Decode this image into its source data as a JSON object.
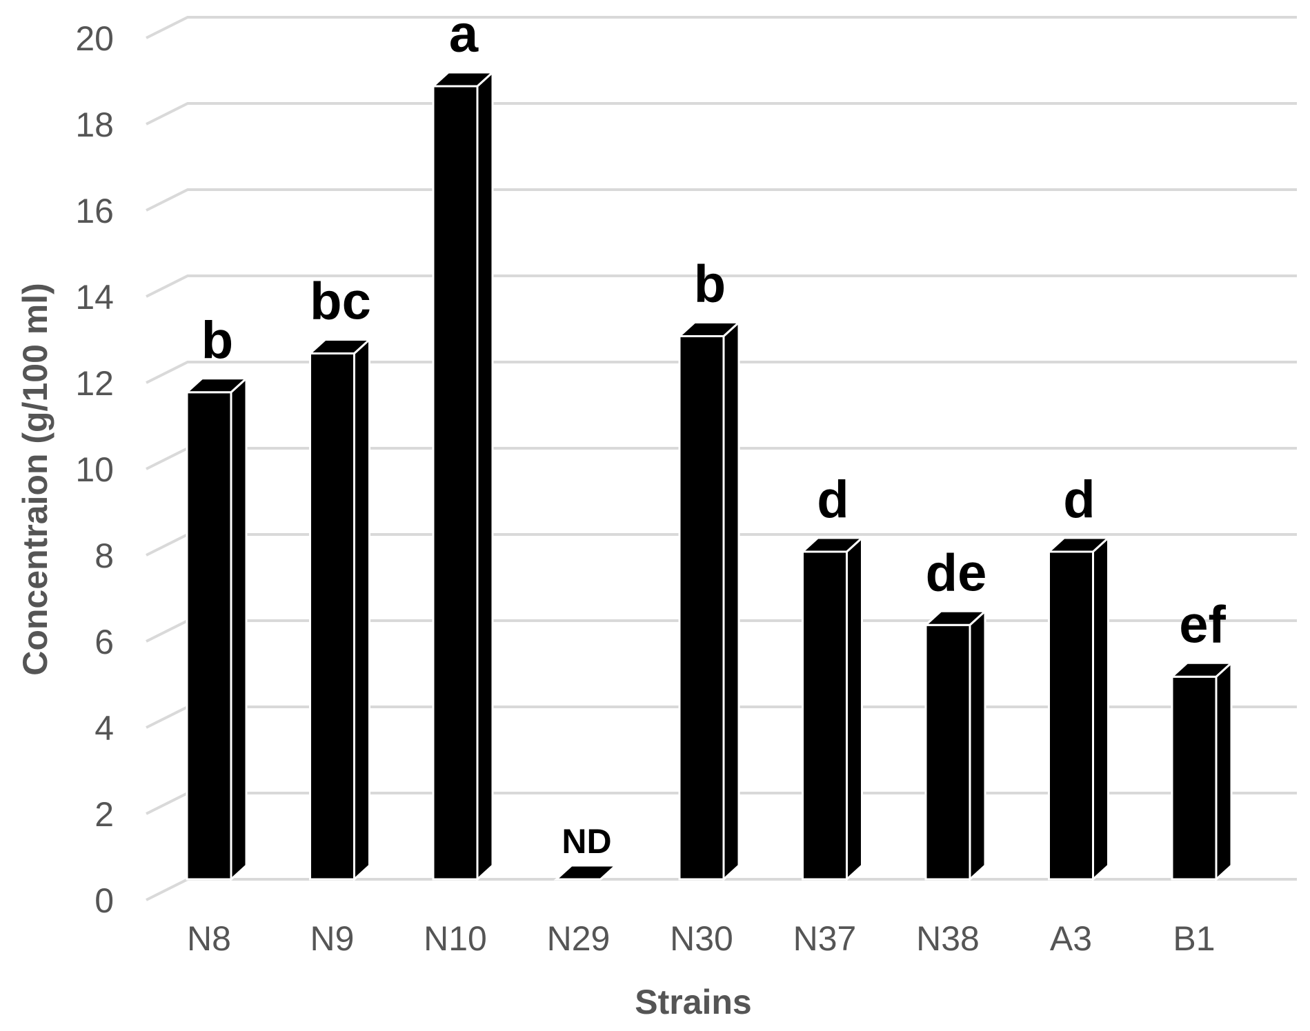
{
  "chart_data": {
    "type": "bar",
    "style": "3d-column",
    "categories": [
      "N8",
      "N9",
      "N10",
      "N29",
      "N30",
      "N37",
      "N38",
      "A3",
      "B1"
    ],
    "values": [
      11.3,
      12.2,
      18.4,
      0,
      12.6,
      7.6,
      5.9,
      7.6,
      4.7
    ],
    "annotations": [
      "b",
      "bc",
      "a",
      "ND",
      "b",
      "d",
      "de",
      "d",
      "ef"
    ],
    "xlabel": "Strains",
    "ylabel": "Concentraion (g/100 ml)",
    "ylim": [
      0,
      20
    ],
    "yticks": [
      0,
      2,
      4,
      6,
      8,
      10,
      12,
      14,
      16,
      18,
      20
    ],
    "grid": true,
    "legend": "none",
    "bar_color": "#000000",
    "grid_color": "#d9d9d9",
    "text_color": "#555555"
  }
}
